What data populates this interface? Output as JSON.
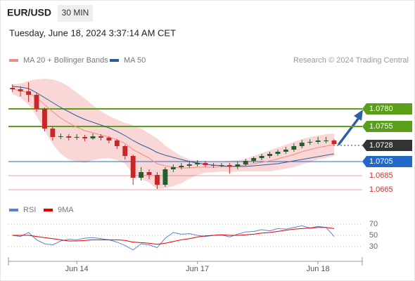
{
  "header": {
    "symbol": "EUR/USD",
    "interval": "30 MIN",
    "timestamp": "Tuesday, June 18, 2024 3:37:14 AM CET"
  },
  "chart_data": [
    {
      "type": "candlestick",
      "attribution": "Research © 2024 Trading Central",
      "up_color": "#1f5f2a",
      "down_color": "#c62828",
      "categories": [
        null,
        null,
        null,
        null,
        null,
        null,
        null,
        null,
        "Jun 14",
        null,
        null,
        null,
        null,
        null,
        null,
        null,
        null,
        null,
        null,
        null,
        null,
        null,
        null,
        "Jun 17",
        null,
        null,
        null,
        null,
        null,
        null,
        null,
        null,
        null,
        null,
        null,
        null,
        null,
        null,
        "Jun 18",
        null,
        null,
        null,
        null,
        null
      ],
      "open": [
        1.081,
        1.0808,
        1.0805,
        1.08,
        1.078,
        1.0752,
        1.074,
        1.0741,
        1.0739,
        1.074,
        1.0738,
        1.0741,
        1.0739,
        1.0735,
        1.0727,
        1.0713,
        1.0682,
        1.069,
        1.0686,
        1.0672,
        1.0694,
        1.0697,
        1.0699,
        1.0701,
        1.0703,
        1.07,
        1.0699,
        1.07,
        1.0698,
        1.0701,
        1.0706,
        1.071,
        1.0713,
        1.0716,
        1.0719,
        1.0722,
        1.0727,
        1.0732,
        1.0733,
        1.0735,
        1.0735,
        null,
        null,
        null
      ],
      "high": [
        1.0815,
        1.0812,
        1.0818,
        1.0803,
        1.0782,
        1.0755,
        1.0745,
        1.0744,
        1.0744,
        1.0743,
        1.0745,
        1.0744,
        1.0741,
        1.0737,
        1.0729,
        1.0715,
        1.0697,
        1.0694,
        1.069,
        1.0697,
        1.0701,
        1.0703,
        1.0706,
        1.0707,
        1.0706,
        1.0703,
        1.0703,
        1.0703,
        1.0705,
        1.0709,
        1.0712,
        1.0716,
        1.0719,
        1.0722,
        1.0726,
        1.0731,
        1.0736,
        1.0737,
        1.074,
        1.074,
        1.0737,
        null,
        null,
        null
      ],
      "low": [
        1.0804,
        1.0798,
        1.079,
        1.0776,
        1.0748,
        1.0735,
        1.0737,
        1.0735,
        1.0736,
        1.0734,
        1.0736,
        1.0735,
        1.0731,
        1.0723,
        1.0708,
        1.0672,
        1.0678,
        1.068,
        1.0666,
        1.0669,
        1.069,
        1.0694,
        1.0696,
        1.0698,
        1.0697,
        1.0696,
        1.0697,
        1.0688,
        1.0694,
        1.0699,
        1.0703,
        1.0707,
        1.071,
        1.0713,
        1.0716,
        1.0719,
        1.0724,
        1.0729,
        1.073,
        1.0731,
        1.0727,
        null,
        null,
        null
      ],
      "close": [
        1.0808,
        1.0805,
        1.08,
        1.078,
        1.0752,
        1.074,
        1.0741,
        1.0739,
        1.074,
        1.0738,
        1.0741,
        1.0739,
        1.0735,
        1.0727,
        1.0713,
        1.0682,
        1.069,
        1.0686,
        1.0672,
        1.0694,
        1.0697,
        1.0699,
        1.0701,
        1.0703,
        1.07,
        1.0699,
        1.07,
        1.0698,
        1.0701,
        1.0706,
        1.071,
        1.0713,
        1.0716,
        1.0719,
        1.0722,
        1.0727,
        1.0732,
        1.0733,
        1.0735,
        1.0735,
        1.073,
        null,
        null,
        null
      ],
      "series": [
        {
          "name": "MA 20 + Bollinger Bands",
          "color": "#f28b82",
          "band_color": "#f6b7b7",
          "values": [
            1.0808,
            1.0806,
            1.0803,
            1.0796,
            1.0786,
            1.0776,
            1.0767,
            1.076,
            1.0754,
            1.0749,
            1.0746,
            1.0743,
            1.074,
            1.0736,
            1.0731,
            1.0722,
            1.0716,
            1.071,
            1.0702,
            1.0699,
            1.0697,
            1.0696,
            1.0696,
            1.0697,
            1.0697,
            1.0697,
            1.0698,
            1.0698,
            1.0699,
            1.07,
            1.0702,
            1.0704,
            1.0706,
            1.0709,
            1.0712,
            1.0715,
            1.0719,
            1.0722,
            1.0725,
            1.0727,
            1.0729,
            null,
            null,
            null
          ],
          "upper": [
            1.0815,
            1.0816,
            1.082,
            1.0822,
            1.0823,
            1.0822,
            1.0818,
            1.0812,
            1.0803,
            1.0795,
            1.0785,
            1.0777,
            1.077,
            1.0765,
            1.076,
            1.0757,
            1.0752,
            1.0745,
            1.0738,
            1.0728,
            1.072,
            1.0713,
            1.0708,
            1.0706,
            1.0705,
            1.0705,
            1.0705,
            1.0706,
            1.0707,
            1.0709,
            1.0713,
            1.0717,
            1.0721,
            1.0725,
            1.0729,
            1.0733,
            1.0737,
            1.074,
            1.0742,
            1.0744,
            1.0745,
            null,
            null,
            null
          ],
          "lower": [
            1.0801,
            1.0796,
            1.0786,
            1.077,
            1.0749,
            1.073,
            1.0716,
            1.0708,
            1.0705,
            1.0703,
            1.0707,
            1.0709,
            1.071,
            1.0707,
            1.0702,
            1.0687,
            1.068,
            1.0675,
            1.0666,
            1.0667,
            1.067,
            1.0674,
            1.0681,
            1.0686,
            1.0689,
            1.069,
            1.0691,
            1.069,
            1.0691,
            1.0691,
            1.0691,
            1.0691,
            1.0691,
            1.0693,
            1.0695,
            1.0697,
            1.0701,
            1.0704,
            1.0708,
            1.071,
            1.0713,
            null,
            null,
            null
          ]
        },
        {
          "name": "MA 50",
          "color": "#2e5c9a",
          "values": [
            1.0812,
            1.0811,
            1.0809,
            1.0803,
            1.0796,
            1.0789,
            1.0782,
            1.0776,
            1.077,
            1.0765,
            1.0761,
            1.0757,
            1.0753,
            1.0748,
            1.0742,
            1.0735,
            1.0729,
            1.0724,
            1.0718,
            1.0714,
            1.0711,
            1.0708,
            1.0705,
            1.0703,
            1.0701,
            1.07,
            1.0699,
            1.0698,
            1.0698,
            1.0698,
            1.0699,
            1.07,
            1.0701,
            1.0702,
            1.0704,
            1.0706,
            1.0708,
            1.071,
            1.0712,
            1.0714,
            1.0716,
            null,
            null,
            null
          ]
        }
      ],
      "levels": [
        {
          "value": 1.078,
          "label": "1.0780",
          "color": "#5a9e1a",
          "box": true,
          "width": 2,
          "from_last": false
        },
        {
          "value": 1.0755,
          "label": "1.0755",
          "color": "#5a9e1a",
          "box": true,
          "width": 2,
          "from_last": false
        },
        {
          "value": 1.0728,
          "label": "1.0728",
          "color": "#333333",
          "box": true,
          "width": 1,
          "from_last": true
        },
        {
          "value": 1.0705,
          "label": "1.0705",
          "color": "#2268c8",
          "box": true,
          "width": 1,
          "from_last": false
        },
        {
          "value": 1.0685,
          "label": "1.0685",
          "color": "#d32f2f",
          "box": false,
          "width": 1,
          "from_last": false
        },
        {
          "value": 1.0665,
          "label": "1.0665",
          "color": "#d32f2f",
          "box": false,
          "width": 1,
          "from_last": false
        }
      ],
      "ylim": [
        1.0652,
        1.0822
      ]
    },
    {
      "type": "line",
      "series": [
        {
          "name": "RSI",
          "color": "#5b7fd8",
          "values": [
            50,
            48,
            55,
            42,
            35,
            33,
            40,
            43,
            42,
            45,
            46,
            44,
            42,
            38,
            32,
            24,
            35,
            33,
            28,
            45,
            55,
            52,
            53,
            50,
            48,
            50,
            51,
            47,
            52,
            56,
            57,
            60,
            58,
            62,
            61,
            64,
            67,
            63,
            66,
            64,
            48,
            null,
            null,
            null
          ]
        },
        {
          "name": "9MA",
          "color": "#e00000",
          "values": [
            50,
            50,
            50,
            48,
            46,
            44,
            42,
            40,
            40,
            41,
            42,
            42,
            42,
            42,
            41,
            38,
            37,
            36,
            34,
            36,
            39,
            42,
            44,
            47,
            49,
            50,
            51,
            50,
            50,
            51,
            52,
            54,
            55,
            57,
            59,
            61,
            62,
            63,
            64,
            64,
            62,
            null,
            null,
            null
          ]
        }
      ],
      "ylim": [
        20,
        80
      ],
      "yticks": [
        70,
        50,
        30
      ],
      "grid": true
    }
  ]
}
